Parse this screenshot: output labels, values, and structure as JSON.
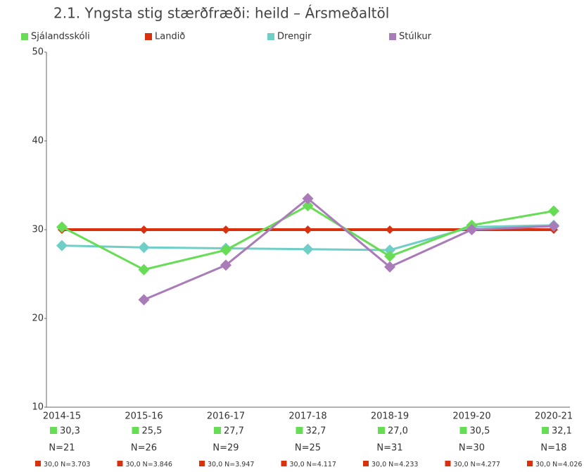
{
  "chart_data": {
    "type": "line",
    "title": "2.1. Yngsta stig stærðfræði: heild – Ársmeðaltöl",
    "categories": [
      "2014-15",
      "2015-16",
      "2016-17",
      "2017-18",
      "2018-19",
      "2019-20",
      "2020-21"
    ],
    "series": [
      {
        "name": "Sjálandsskóli",
        "color": "#66dd55",
        "values": [
          30.3,
          25.5,
          27.7,
          32.7,
          27.0,
          30.5,
          32.1
        ],
        "value_labels": [
          "30,3",
          "25,5",
          "27,7",
          "32,7",
          "27,0",
          "30,5",
          "32,1"
        ],
        "n_labels": [
          "N=21",
          "N=26",
          "N=29",
          "N=25",
          "N=31",
          "N=30",
          "N=18"
        ]
      },
      {
        "name": "Landið",
        "color": "#d9300e",
        "values": [
          30,
          30,
          30,
          30,
          30,
          30,
          30
        ],
        "value_labels": [
          "30,0",
          "30,0",
          "30,0",
          "30,0",
          "30,0",
          "30,0",
          "30,0"
        ],
        "n_labels": [
          "N=3.703",
          "N=3.846",
          "N=3.947",
          "N=4.117",
          "N=4.233",
          "N=4.277",
          "N=4.026"
        ]
      },
      {
        "name": "Drengir",
        "color": "#6fcfc6",
        "values": [
          28.2,
          28.0,
          27.9,
          27.8,
          27.7,
          30.3,
          30.5
        ]
      },
      {
        "name": "Stúlkur",
        "color": "#a97bb9",
        "values": [
          null,
          22.1,
          26.0,
          33.5,
          25.8,
          30.0,
          30.4
        ]
      }
    ],
    "ylim": [
      10,
      50
    ],
    "yticks": [
      10,
      20,
      30,
      40,
      50
    ],
    "grid": false,
    "legend": "top"
  }
}
